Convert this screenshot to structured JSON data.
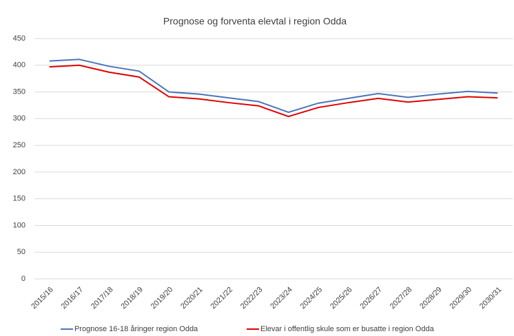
{
  "chart_data": {
    "type": "line",
    "title": "Prognose og forventa elevtal i region Odda",
    "categories": [
      "2015/16",
      "2016/17",
      "2017/18",
      "2018/19",
      "2019/20",
      "2020/21",
      "2021/22",
      "2022/23",
      "2023/24",
      "2024/25",
      "2025/26",
      "2026/27",
      "2027/28",
      "2028/29",
      "2029/30",
      "2030/31"
    ],
    "series": [
      {
        "name": "Prognose 16-18 åringer region Odda",
        "color": "#4a76b8",
        "values": [
          408,
          411,
          398,
          389,
          350,
          346,
          339,
          332,
          312,
          329,
          338,
          347,
          340,
          346,
          351,
          348
        ]
      },
      {
        "name": "Elevar i offentlig skule som er busatte i region Odda",
        "color": "#e00000",
        "values": [
          397,
          400,
          387,
          378,
          341,
          337,
          330,
          324,
          304,
          321,
          330,
          338,
          331,
          336,
          341,
          339
        ]
      }
    ],
    "ylim": [
      0,
      450
    ],
    "yticks": [
      0,
      50,
      100,
      150,
      200,
      250,
      300,
      350,
      400,
      450
    ],
    "grid": true,
    "legend": "bottom"
  }
}
